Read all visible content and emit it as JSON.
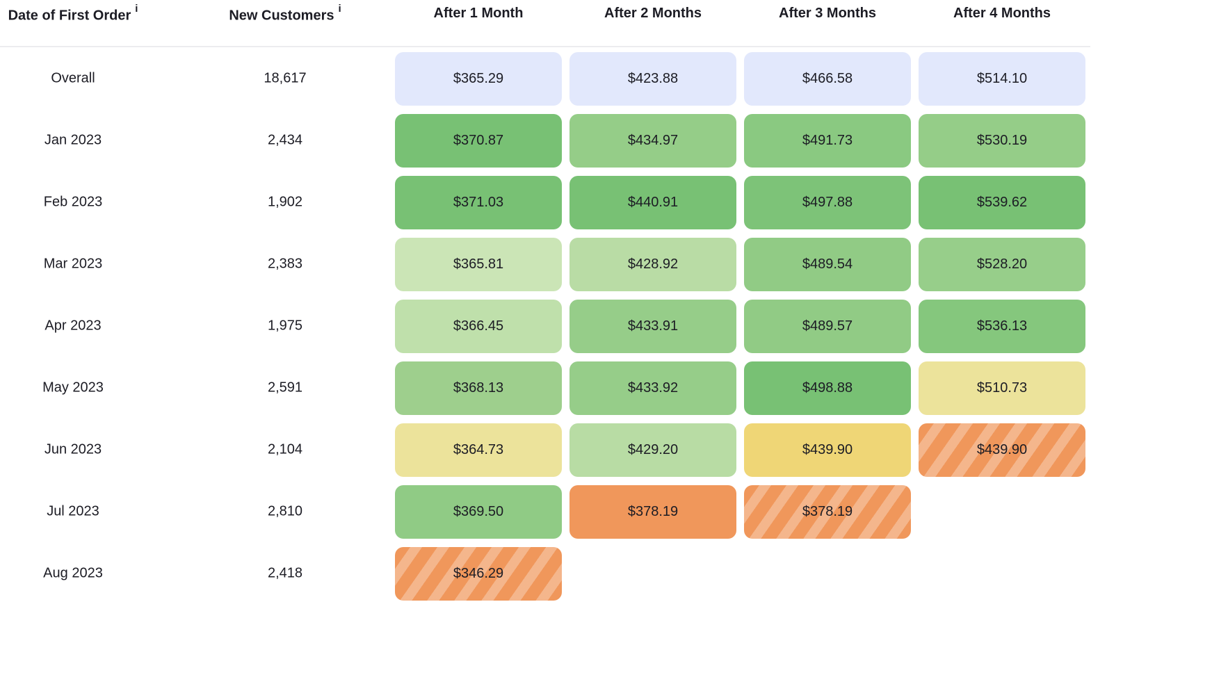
{
  "table": {
    "columns": [
      {
        "label": "Date of First Order",
        "info": "i"
      },
      {
        "label": "New Customers",
        "info": "i"
      },
      {
        "label": "After 1 Month"
      },
      {
        "label": "After 2 Months"
      },
      {
        "label": "After 3 Months"
      },
      {
        "label": "After 4 Months"
      }
    ],
    "rows": [
      {
        "date": "Overall",
        "customers": "18,617",
        "cells": [
          {
            "value": "$365.29",
            "color": "#e2e8fc"
          },
          {
            "value": "$423.88",
            "color": "#e2e8fc"
          },
          {
            "value": "$466.58",
            "color": "#e2e8fc"
          },
          {
            "value": "$514.10",
            "color": "#e2e8fc"
          }
        ]
      },
      {
        "date": "Jan 2023",
        "customers": "2,434",
        "cells": [
          {
            "value": "$370.87",
            "color": "#78c174"
          },
          {
            "value": "$434.97",
            "color": "#95cd88"
          },
          {
            "value": "$491.73",
            "color": "#8ac981"
          },
          {
            "value": "$530.19",
            "color": "#95cd88"
          }
        ]
      },
      {
        "date": "Feb 2023",
        "customers": "1,902",
        "cells": [
          {
            "value": "$371.03",
            "color": "#78c174"
          },
          {
            "value": "$440.91",
            "color": "#78c174"
          },
          {
            "value": "$497.88",
            "color": "#7dc378"
          },
          {
            "value": "$539.62",
            "color": "#78c174"
          }
        ]
      },
      {
        "date": "Mar 2023",
        "customers": "2,383",
        "cells": [
          {
            "value": "$365.81",
            "color": "#cbe5b6"
          },
          {
            "value": "$428.92",
            "color": "#b9dca5"
          },
          {
            "value": "$489.54",
            "color": "#91cb85"
          },
          {
            "value": "$528.20",
            "color": "#97ce8a"
          }
        ]
      },
      {
        "date": "Apr 2023",
        "customers": "1,975",
        "cells": [
          {
            "value": "$366.45",
            "color": "#bfe0ab"
          },
          {
            "value": "$433.91",
            "color": "#96cd89"
          },
          {
            "value": "$489.57",
            "color": "#91cb85"
          },
          {
            "value": "$536.13",
            "color": "#85c77d"
          }
        ]
      },
      {
        "date": "May 2023",
        "customers": "2,591",
        "cells": [
          {
            "value": "$368.13",
            "color": "#9ecf8d"
          },
          {
            "value": "$433.92",
            "color": "#96cd89"
          },
          {
            "value": "$498.88",
            "color": "#78c174"
          },
          {
            "value": "$510.73",
            "color": "#ece39b"
          }
        ]
      },
      {
        "date": "Jun 2023",
        "customers": "2,104",
        "cells": [
          {
            "value": "$364.73",
            "color": "#ece39b"
          },
          {
            "value": "$429.20",
            "color": "#b8dca4"
          },
          {
            "value": "$439.90",
            "color": "#efd676"
          },
          {
            "value": "$439.90",
            "color": "#f0975b",
            "striped": true
          }
        ]
      },
      {
        "date": "Jul 2023",
        "customers": "2,810",
        "cells": [
          {
            "value": "$369.50",
            "color": "#90cb85"
          },
          {
            "value": "$378.19",
            "color": "#f0975b"
          },
          {
            "value": "$378.19",
            "color": "#f0975b",
            "striped": true
          }
        ]
      },
      {
        "date": "Aug 2023",
        "customers": "2,418",
        "cells": [
          {
            "value": "$346.29",
            "color": "#f0975b",
            "striped": true
          }
        ]
      }
    ]
  }
}
